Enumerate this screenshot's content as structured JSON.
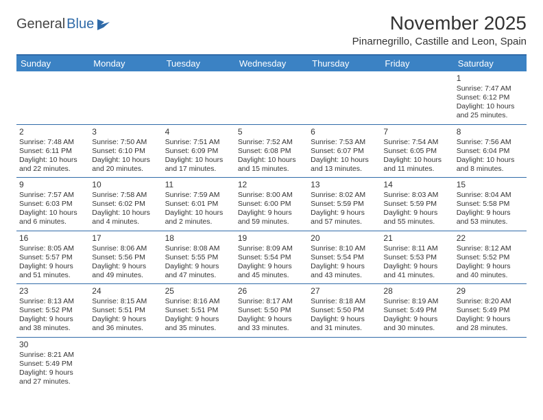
{
  "logo": {
    "text1": "General",
    "text2": "Blue"
  },
  "title": "November 2025",
  "location": "Pinarnegrillo, Castille and Leon, Spain",
  "colors": {
    "header_bg": "#3b82c4",
    "header_border": "#2f6aa8",
    "text": "#333333",
    "white": "#ffffff"
  },
  "weekdays": [
    "Sunday",
    "Monday",
    "Tuesday",
    "Wednesday",
    "Thursday",
    "Friday",
    "Saturday"
  ],
  "first_weekday_index": 6,
  "days": [
    {
      "n": 1,
      "sunrise": "7:47 AM",
      "sunset": "6:12 PM",
      "daylight": "10 hours and 25 minutes."
    },
    {
      "n": 2,
      "sunrise": "7:48 AM",
      "sunset": "6:11 PM",
      "daylight": "10 hours and 22 minutes."
    },
    {
      "n": 3,
      "sunrise": "7:50 AM",
      "sunset": "6:10 PM",
      "daylight": "10 hours and 20 minutes."
    },
    {
      "n": 4,
      "sunrise": "7:51 AM",
      "sunset": "6:09 PM",
      "daylight": "10 hours and 17 minutes."
    },
    {
      "n": 5,
      "sunrise": "7:52 AM",
      "sunset": "6:08 PM",
      "daylight": "10 hours and 15 minutes."
    },
    {
      "n": 6,
      "sunrise": "7:53 AM",
      "sunset": "6:07 PM",
      "daylight": "10 hours and 13 minutes."
    },
    {
      "n": 7,
      "sunrise": "7:54 AM",
      "sunset": "6:05 PM",
      "daylight": "10 hours and 11 minutes."
    },
    {
      "n": 8,
      "sunrise": "7:56 AM",
      "sunset": "6:04 PM",
      "daylight": "10 hours and 8 minutes."
    },
    {
      "n": 9,
      "sunrise": "7:57 AM",
      "sunset": "6:03 PM",
      "daylight": "10 hours and 6 minutes."
    },
    {
      "n": 10,
      "sunrise": "7:58 AM",
      "sunset": "6:02 PM",
      "daylight": "10 hours and 4 minutes."
    },
    {
      "n": 11,
      "sunrise": "7:59 AM",
      "sunset": "6:01 PM",
      "daylight": "10 hours and 2 minutes."
    },
    {
      "n": 12,
      "sunrise": "8:00 AM",
      "sunset": "6:00 PM",
      "daylight": "9 hours and 59 minutes."
    },
    {
      "n": 13,
      "sunrise": "8:02 AM",
      "sunset": "5:59 PM",
      "daylight": "9 hours and 57 minutes."
    },
    {
      "n": 14,
      "sunrise": "8:03 AM",
      "sunset": "5:59 PM",
      "daylight": "9 hours and 55 minutes."
    },
    {
      "n": 15,
      "sunrise": "8:04 AM",
      "sunset": "5:58 PM",
      "daylight": "9 hours and 53 minutes."
    },
    {
      "n": 16,
      "sunrise": "8:05 AM",
      "sunset": "5:57 PM",
      "daylight": "9 hours and 51 minutes."
    },
    {
      "n": 17,
      "sunrise": "8:06 AM",
      "sunset": "5:56 PM",
      "daylight": "9 hours and 49 minutes."
    },
    {
      "n": 18,
      "sunrise": "8:08 AM",
      "sunset": "5:55 PM",
      "daylight": "9 hours and 47 minutes."
    },
    {
      "n": 19,
      "sunrise": "8:09 AM",
      "sunset": "5:54 PM",
      "daylight": "9 hours and 45 minutes."
    },
    {
      "n": 20,
      "sunrise": "8:10 AM",
      "sunset": "5:54 PM",
      "daylight": "9 hours and 43 minutes."
    },
    {
      "n": 21,
      "sunrise": "8:11 AM",
      "sunset": "5:53 PM",
      "daylight": "9 hours and 41 minutes."
    },
    {
      "n": 22,
      "sunrise": "8:12 AM",
      "sunset": "5:52 PM",
      "daylight": "9 hours and 40 minutes."
    },
    {
      "n": 23,
      "sunrise": "8:13 AM",
      "sunset": "5:52 PM",
      "daylight": "9 hours and 38 minutes."
    },
    {
      "n": 24,
      "sunrise": "8:15 AM",
      "sunset": "5:51 PM",
      "daylight": "9 hours and 36 minutes."
    },
    {
      "n": 25,
      "sunrise": "8:16 AM",
      "sunset": "5:51 PM",
      "daylight": "9 hours and 35 minutes."
    },
    {
      "n": 26,
      "sunrise": "8:17 AM",
      "sunset": "5:50 PM",
      "daylight": "9 hours and 33 minutes."
    },
    {
      "n": 27,
      "sunrise": "8:18 AM",
      "sunset": "5:50 PM",
      "daylight": "9 hours and 31 minutes."
    },
    {
      "n": 28,
      "sunrise": "8:19 AM",
      "sunset": "5:49 PM",
      "daylight": "9 hours and 30 minutes."
    },
    {
      "n": 29,
      "sunrise": "8:20 AM",
      "sunset": "5:49 PM",
      "daylight": "9 hours and 28 minutes."
    },
    {
      "n": 30,
      "sunrise": "8:21 AM",
      "sunset": "5:49 PM",
      "daylight": "9 hours and 27 minutes."
    }
  ],
  "labels": {
    "sunrise": "Sunrise:",
    "sunset": "Sunset:",
    "daylight": "Daylight:"
  }
}
